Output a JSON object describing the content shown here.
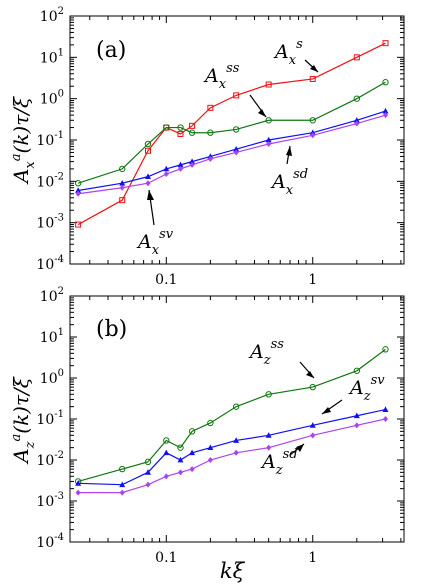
{
  "chart_data": [
    {
      "type": "line",
      "panel_label": "(a)",
      "ylabel": "A_x^a(k)τ/ξ",
      "xlabel": "",
      "xscale": "log",
      "yscale": "log",
      "xlim": [
        0.022,
        4.2
      ],
      "ylim": [
        0.0001,
        100
      ],
      "xticks": [
        "0.1",
        "1"
      ],
      "yticks": [
        "10^-4",
        "10^-3",
        "10^-2",
        "10^-1",
        "10^0",
        "10^1",
        "10^2"
      ],
      "series": [
        {
          "name": "A_x^s",
          "color": "#ee1111",
          "marker": "square",
          "x": [
            0.025,
            0.05,
            0.075,
            0.1,
            0.125,
            0.15,
            0.2,
            0.3,
            0.5,
            1.0,
            2.0,
            3.14
          ],
          "y": [
            0.0009,
            0.0035,
            0.055,
            0.2,
            0.14,
            0.22,
            0.6,
            1.2,
            2.2,
            3.0,
            10.0,
            22.0
          ]
        },
        {
          "name": "A_x^ss",
          "color": "#117711",
          "marker": "circle",
          "x": [
            0.025,
            0.05,
            0.075,
            0.1,
            0.125,
            0.15,
            0.2,
            0.3,
            0.5,
            1.0,
            2.0,
            3.14
          ],
          "y": [
            0.009,
            0.02,
            0.08,
            0.2,
            0.2,
            0.15,
            0.15,
            0.18,
            0.3,
            0.3,
            1.0,
            2.5
          ]
        },
        {
          "name": "A_x^sv",
          "color": "#1111ee",
          "marker": "triangle",
          "x": [
            0.025,
            0.05,
            0.075,
            0.1,
            0.125,
            0.15,
            0.2,
            0.3,
            0.5,
            1.0,
            2.0,
            3.14
          ],
          "y": [
            0.006,
            0.009,
            0.013,
            0.02,
            0.025,
            0.03,
            0.04,
            0.06,
            0.1,
            0.15,
            0.3,
            0.5
          ]
        },
        {
          "name": "A_x^sd",
          "color": "#aa44ee",
          "marker": "diamond",
          "x": [
            0.025,
            0.05,
            0.075,
            0.1,
            0.125,
            0.15,
            0.2,
            0.3,
            0.5,
            1.0,
            2.0,
            3.14
          ],
          "y": [
            0.005,
            0.007,
            0.009,
            0.015,
            0.02,
            0.025,
            0.035,
            0.05,
            0.08,
            0.13,
            0.25,
            0.4
          ]
        }
      ],
      "annotations": [
        {
          "base": "A",
          "sub": "x",
          "sup": "s"
        },
        {
          "base": "A",
          "sub": "x",
          "sup": "ss"
        },
        {
          "base": "A",
          "sub": "x",
          "sup": "sd"
        },
        {
          "base": "A",
          "sub": "x",
          "sup": "sv"
        }
      ]
    },
    {
      "type": "line",
      "panel_label": "(b)",
      "ylabel": "A_z^a(k)τ/ξ",
      "xlabel": "kξ",
      "xscale": "log",
      "yscale": "log",
      "xlim": [
        0.022,
        4.2
      ],
      "ylim": [
        0.0001,
        100
      ],
      "xticks": [
        "0.1",
        "1"
      ],
      "yticks": [
        "10^-4",
        "10^-3",
        "10^-2",
        "10^-1",
        "10^0",
        "10^1",
        "10^2"
      ],
      "series": [
        {
          "name": "A_z^ss",
          "color": "#117711",
          "marker": "circle",
          "x": [
            0.025,
            0.05,
            0.075,
            0.1,
            0.125,
            0.15,
            0.2,
            0.3,
            0.5,
            1.0,
            2.0,
            3.14
          ],
          "y": [
            0.003,
            0.006,
            0.009,
            0.03,
            0.02,
            0.05,
            0.08,
            0.2,
            0.4,
            0.6,
            1.5,
            5.0
          ]
        },
        {
          "name": "A_z^sv",
          "color": "#1111ee",
          "marker": "triangle",
          "x": [
            0.025,
            0.05,
            0.075,
            0.1,
            0.125,
            0.15,
            0.2,
            0.3,
            0.5,
            1.0,
            2.0,
            3.14
          ],
          "y": [
            0.0027,
            0.0025,
            0.005,
            0.015,
            0.01,
            0.015,
            0.02,
            0.03,
            0.04,
            0.07,
            0.12,
            0.17
          ]
        },
        {
          "name": "A_z^sd",
          "color": "#aa44ee",
          "marker": "diamond",
          "x": [
            0.025,
            0.05,
            0.075,
            0.1,
            0.125,
            0.15,
            0.2,
            0.3,
            0.5,
            1.0,
            2.0,
            3.14
          ],
          "y": [
            0.0016,
            0.0016,
            0.0025,
            0.004,
            0.005,
            0.006,
            0.01,
            0.015,
            0.02,
            0.04,
            0.07,
            0.1
          ]
        }
      ],
      "annotations": [
        {
          "base": "A",
          "sub": "z",
          "sup": "ss"
        },
        {
          "base": "A",
          "sub": "z",
          "sup": "sv"
        },
        {
          "base": "A",
          "sub": "z",
          "sup": "sd"
        }
      ]
    }
  ]
}
